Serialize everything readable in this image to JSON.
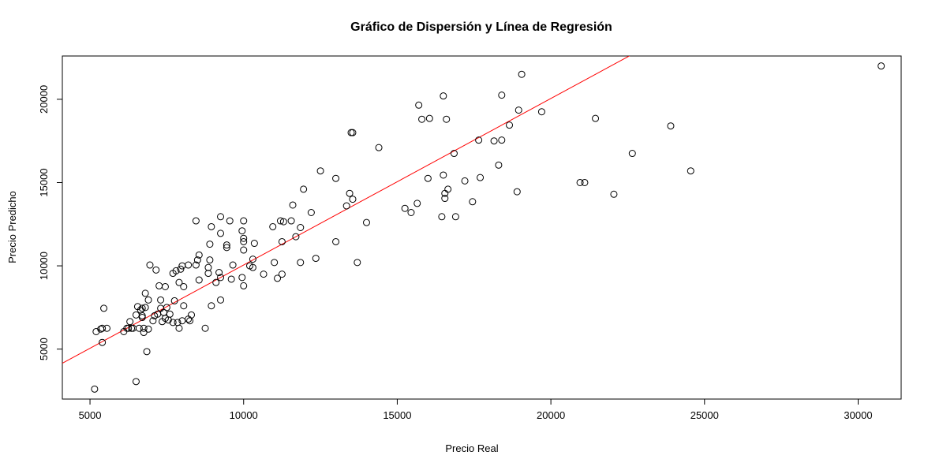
{
  "chart_data": {
    "type": "scatter",
    "title": "Gráfico de Dispersión y Línea de Regresión",
    "xlabel": "Precio Real",
    "ylabel": "Precio Predicho",
    "xlim": [
      4100,
      31400
    ],
    "ylim": [
      2000,
      22600
    ],
    "x_ticks": [
      5000,
      10000,
      15000,
      20000,
      25000,
      30000
    ],
    "x_tick_labels": [
      "5000",
      "10000",
      "15000",
      "20000",
      "25000",
      "30000"
    ],
    "y_ticks": [
      5000,
      10000,
      15000,
      20000
    ],
    "y_tick_labels": [
      "5000",
      "10000",
      "15000",
      "20000"
    ],
    "grid": false,
    "regression_line": {
      "color": "#ff0000",
      "x": [
        4100,
        22950
      ],
      "y": [
        4150,
        23000
      ]
    },
    "points": [
      [
        5150,
        2600
      ],
      [
        5200,
        6050
      ],
      [
        5350,
        6200
      ],
      [
        5400,
        6250
      ],
      [
        5400,
        5400
      ],
      [
        5450,
        7450
      ],
      [
        5550,
        6250
      ],
      [
        6100,
        6050
      ],
      [
        6200,
        6250
      ],
      [
        6250,
        6250
      ],
      [
        6300,
        6650
      ],
      [
        6350,
        6250
      ],
      [
        6400,
        6250
      ],
      [
        6500,
        3050
      ],
      [
        6500,
        7050
      ],
      [
        6550,
        7550
      ],
      [
        6600,
        6250
      ],
      [
        6650,
        7350
      ],
      [
        6700,
        7450
      ],
      [
        6700,
        7000
      ],
      [
        6700,
        6900
      ],
      [
        6750,
        6250
      ],
      [
        6750,
        6000
      ],
      [
        6800,
        8350
      ],
      [
        6800,
        7500
      ],
      [
        6850,
        4850
      ],
      [
        6900,
        6200
      ],
      [
        6900,
        7950
      ],
      [
        6950,
        10050
      ],
      [
        7050,
        6700
      ],
      [
        7100,
        7000
      ],
      [
        7150,
        9750
      ],
      [
        7200,
        7100
      ],
      [
        7250,
        8800
      ],
      [
        7300,
        7950
      ],
      [
        7300,
        7450
      ],
      [
        7350,
        6650
      ],
      [
        7400,
        7200
      ],
      [
        7450,
        8750
      ],
      [
        7450,
        6850
      ],
      [
        7500,
        7500
      ],
      [
        7550,
        6750
      ],
      [
        7600,
        7100
      ],
      [
        7700,
        9550
      ],
      [
        7700,
        6600
      ],
      [
        7750,
        7900
      ],
      [
        7800,
        9700
      ],
      [
        7850,
        6600
      ],
      [
        7900,
        9000
      ],
      [
        7900,
        6250
      ],
      [
        7950,
        9800
      ],
      [
        8000,
        10000
      ],
      [
        8000,
        6700
      ],
      [
        8050,
        8750
      ],
      [
        8050,
        7600
      ],
      [
        8200,
        10050
      ],
      [
        8200,
        6800
      ],
      [
        8250,
        6700
      ],
      [
        8300,
        7050
      ],
      [
        8450,
        12700
      ],
      [
        8450,
        10050
      ],
      [
        8500,
        10350
      ],
      [
        8550,
        9150
      ],
      [
        8550,
        10650
      ],
      [
        8750,
        6250
      ],
      [
        8850,
        9550
      ],
      [
        8850,
        9900
      ],
      [
        8900,
        11300
      ],
      [
        8900,
        10350
      ],
      [
        8950,
        12350
      ],
      [
        8950,
        7600
      ],
      [
        9100,
        9000
      ],
      [
        9200,
        9600
      ],
      [
        9250,
        9300
      ],
      [
        9250,
        12950
      ],
      [
        9250,
        11950
      ],
      [
        9250,
        7950
      ],
      [
        9450,
        11100
      ],
      [
        9450,
        11250
      ],
      [
        9550,
        12700
      ],
      [
        9600,
        9200
      ],
      [
        9650,
        10050
      ],
      [
        9950,
        9300
      ],
      [
        9950,
        12100
      ],
      [
        10000,
        11650
      ],
      [
        10000,
        11450
      ],
      [
        10000,
        10950
      ],
      [
        10000,
        8800
      ],
      [
        10000,
        12700
      ],
      [
        10200,
        10000
      ],
      [
        10300,
        10400
      ],
      [
        10300,
        9900
      ],
      [
        10350,
        11350
      ],
      [
        10650,
        9500
      ],
      [
        10950,
        12350
      ],
      [
        11000,
        10200
      ],
      [
        11100,
        9250
      ],
      [
        11200,
        12700
      ],
      [
        11250,
        11450
      ],
      [
        11250,
        9500
      ],
      [
        11300,
        12650
      ],
      [
        11550,
        12700
      ],
      [
        11600,
        13650
      ],
      [
        11700,
        11750
      ],
      [
        11850,
        12300
      ],
      [
        11850,
        10200
      ],
      [
        11950,
        14600
      ],
      [
        12200,
        13200
      ],
      [
        12350,
        10450
      ],
      [
        12500,
        15700
      ],
      [
        13000,
        15250
      ],
      [
        13000,
        11450
      ],
      [
        13350,
        13600
      ],
      [
        13450,
        14350
      ],
      [
        13500,
        18000
      ],
      [
        13550,
        18000
      ],
      [
        13550,
        14000
      ],
      [
        13700,
        10200
      ],
      [
        14000,
        12600
      ],
      [
        14400,
        17100
      ],
      [
        15250,
        13450
      ],
      [
        15450,
        13200
      ],
      [
        15650,
        13750
      ],
      [
        15700,
        19650
      ],
      [
        15800,
        18800
      ],
      [
        16000,
        15250
      ],
      [
        16050,
        18850
      ],
      [
        16450,
        12950
      ],
      [
        16500,
        15450
      ],
      [
        16500,
        20200
      ],
      [
        16550,
        14050
      ],
      [
        16550,
        14350
      ],
      [
        16600,
        18800
      ],
      [
        16650,
        14600
      ],
      [
        16850,
        16750
      ],
      [
        16900,
        12950
      ],
      [
        17200,
        15100
      ],
      [
        17450,
        13850
      ],
      [
        17650,
        17550
      ],
      [
        17700,
        15300
      ],
      [
        18150,
        17500
      ],
      [
        18300,
        16050
      ],
      [
        18400,
        17550
      ],
      [
        18400,
        20250
      ],
      [
        18650,
        18450
      ],
      [
        18900,
        14450
      ],
      [
        18950,
        19350
      ],
      [
        19050,
        21500
      ],
      [
        19700,
        19250
      ],
      [
        20950,
        15000
      ],
      [
        21100,
        15000
      ],
      [
        21450,
        18850
      ],
      [
        22050,
        14300
      ],
      [
        22650,
        16750
      ],
      [
        23900,
        18400
      ],
      [
        24550,
        15700
      ],
      [
        30750,
        22000
      ]
    ]
  }
}
